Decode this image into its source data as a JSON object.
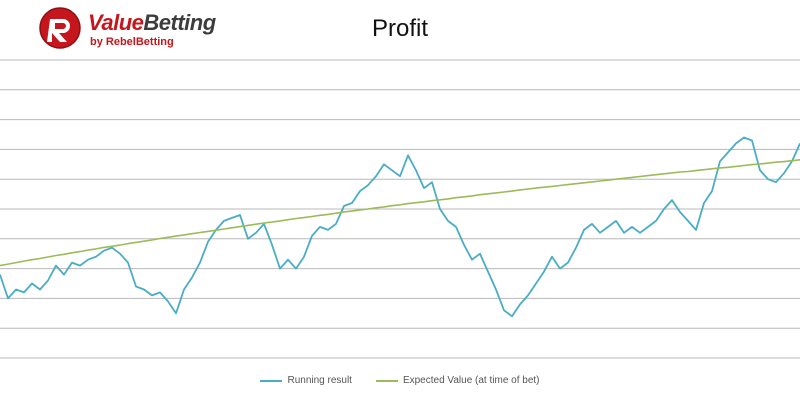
{
  "logo": {
    "name_part1": "Value",
    "name_part2": "Betting",
    "tagline": "by RebelBetting",
    "brand_color": "#c4161c"
  },
  "chart_data": {
    "type": "line",
    "title": "Profit",
    "xlabel": "",
    "ylabel": "",
    "grid": true,
    "legend_position": "bottom",
    "x_count": 101,
    "ylim": [
      0,
      10
    ],
    "gridlines": [
      0,
      1,
      2,
      3,
      4,
      5,
      6,
      7,
      8,
      9,
      10
    ],
    "series": [
      {
        "name": "Running result",
        "color": "#4bacc6",
        "values": [
          2.8,
          2.0,
          2.3,
          2.2,
          2.5,
          2.3,
          2.6,
          3.1,
          2.8,
          3.2,
          3.1,
          3.3,
          3.4,
          3.6,
          3.7,
          3.5,
          3.2,
          2.4,
          2.3,
          2.1,
          2.2,
          1.9,
          1.5,
          2.3,
          2.7,
          3.2,
          3.9,
          4.3,
          4.6,
          4.7,
          4.8,
          4.0,
          4.2,
          4.5,
          3.8,
          3.0,
          3.3,
          3.0,
          3.4,
          4.1,
          4.4,
          4.3,
          4.5,
          5.1,
          5.2,
          5.6,
          5.8,
          6.1,
          6.5,
          6.3,
          6.1,
          6.8,
          6.3,
          5.7,
          5.9,
          5.0,
          4.6,
          4.4,
          3.8,
          3.3,
          3.5,
          2.9,
          2.3,
          1.6,
          1.4,
          1.8,
          2.1,
          2.5,
          2.9,
          3.4,
          3.0,
          3.2,
          3.7,
          4.3,
          4.5,
          4.2,
          4.4,
          4.6,
          4.2,
          4.4,
          4.2,
          4.4,
          4.6,
          5.0,
          5.3,
          4.9,
          4.6,
          4.3,
          5.2,
          5.6,
          6.6,
          6.9,
          7.2,
          7.4,
          7.3,
          6.3,
          6.0,
          5.9,
          6.2,
          6.6,
          7.2
        ]
      },
      {
        "name": "Expected Value (at time of bet)",
        "color": "#9bbb59",
        "values": [
          3.1,
          3.15,
          3.2,
          3.25,
          3.3,
          3.34,
          3.39,
          3.44,
          3.48,
          3.53,
          3.57,
          3.62,
          3.66,
          3.71,
          3.75,
          3.79,
          3.84,
          3.88,
          3.92,
          3.96,
          4.01,
          4.05,
          4.09,
          4.13,
          4.17,
          4.21,
          4.25,
          4.29,
          4.33,
          4.37,
          4.41,
          4.45,
          4.49,
          4.53,
          4.56,
          4.6,
          4.64,
          4.68,
          4.71,
          4.75,
          4.79,
          4.82,
          4.86,
          4.9,
          4.93,
          4.97,
          5.0,
          5.04,
          5.07,
          5.11,
          5.14,
          5.18,
          5.21,
          5.24,
          5.28,
          5.31,
          5.34,
          5.38,
          5.41,
          5.44,
          5.48,
          5.51,
          5.54,
          5.57,
          5.6,
          5.64,
          5.67,
          5.7,
          5.73,
          5.76,
          5.79,
          5.82,
          5.85,
          5.88,
          5.91,
          5.94,
          5.97,
          6.0,
          6.03,
          6.06,
          6.09,
          6.12,
          6.15,
          6.18,
          6.21,
          6.24,
          6.26,
          6.29,
          6.32,
          6.35,
          6.38,
          6.4,
          6.43,
          6.46,
          6.49,
          6.51,
          6.54,
          6.57,
          6.59,
          6.62,
          6.65
        ]
      }
    ]
  }
}
